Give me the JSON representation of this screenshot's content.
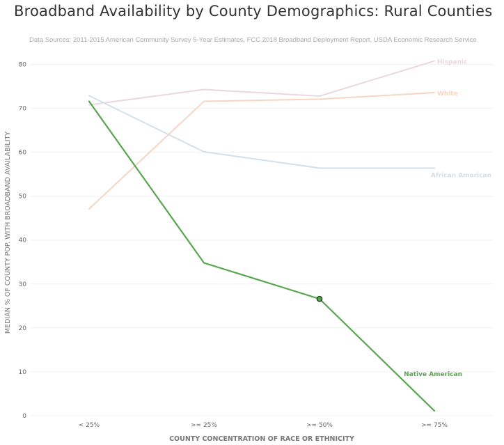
{
  "title": "Broadband Availability by County Demographics: Rural Counties",
  "subtitle": "Data Sources: 2011-2015 American Community Survey 5-Year Estimates, FCC 2018 Broadband Deployment Report, USDA Economic Research Service",
  "chart_data": {
    "type": "line",
    "title": "Broadband Availability by County Demographics: Rural Counties",
    "xlabel": "COUNTY CONCENTRATION OF RACE OR ETHNICITY",
    "ylabel": "MEDIAN % OF COUNTY POP. WITH BROADBAND AVAILABILITY",
    "categories": [
      "< 25%",
      ">= 25%",
      ">= 50%",
      ">= 75%"
    ],
    "yticks": [
      0,
      10,
      20,
      30,
      40,
      50,
      60,
      70,
      80
    ],
    "ylim": [
      -0.5,
      82
    ],
    "grid": true,
    "legend": "direct labels at line ends",
    "series": [
      {
        "name": "Hispanic",
        "values": [
          70.8,
          74.3,
          72.8,
          80.8
        ],
        "color": "#ead8df",
        "highlight": false
      },
      {
        "name": "White",
        "values": [
          47.1,
          71.6,
          72.1,
          73.6
        ],
        "color": "#f6d5c2",
        "highlight": false
      },
      {
        "name": "African American",
        "values": [
          72.9,
          60.1,
          56.4,
          56.4
        ],
        "color": "#d6dfe8",
        "highlight": false
      },
      {
        "name": "Native American",
        "values": [
          71.6,
          34.8,
          26.6,
          1.1
        ],
        "color": "#5aa550",
        "highlight": true,
        "marker_index": 2
      }
    ]
  }
}
